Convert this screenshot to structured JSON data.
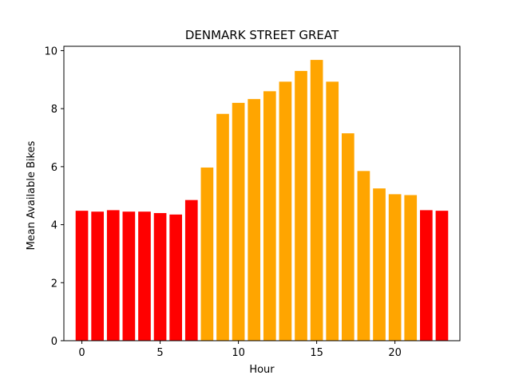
{
  "chart_data": {
    "type": "bar",
    "title": "DENMARK STREET GREAT",
    "xlabel": "Hour",
    "ylabel": "Mean Available Bikes",
    "x": [
      0,
      1,
      2,
      3,
      4,
      5,
      6,
      7,
      8,
      9,
      10,
      11,
      12,
      13,
      14,
      15,
      16,
      17,
      18,
      19,
      20,
      21,
      22,
      23
    ],
    "values": [
      4.48,
      4.45,
      4.5,
      4.45,
      4.45,
      4.4,
      4.35,
      4.85,
      5.97,
      7.82,
      8.2,
      8.33,
      8.6,
      8.93,
      9.3,
      9.68,
      8.93,
      7.15,
      5.85,
      5.25,
      5.05,
      5.02,
      4.5,
      4.48
    ],
    "bar_colors": [
      "#ff0000",
      "#ff0000",
      "#ff0000",
      "#ff0000",
      "#ff0000",
      "#ff0000",
      "#ff0000",
      "#ff0000",
      "#ffa500",
      "#ffa500",
      "#ffa500",
      "#ffa500",
      "#ffa500",
      "#ffa500",
      "#ffa500",
      "#ffa500",
      "#ffa500",
      "#ffa500",
      "#ffa500",
      "#ffa500",
      "#ffa500",
      "#ffa500",
      "#ff0000",
      "#ff0000"
    ],
    "xlim": [
      -1.15,
      24.15
    ],
    "ylim": [
      0,
      10.15
    ],
    "xticks": [
      0,
      5,
      10,
      15,
      20
    ],
    "yticks": [
      0,
      2,
      4,
      6,
      8,
      10
    ],
    "grid": false,
    "legend": "none"
  }
}
